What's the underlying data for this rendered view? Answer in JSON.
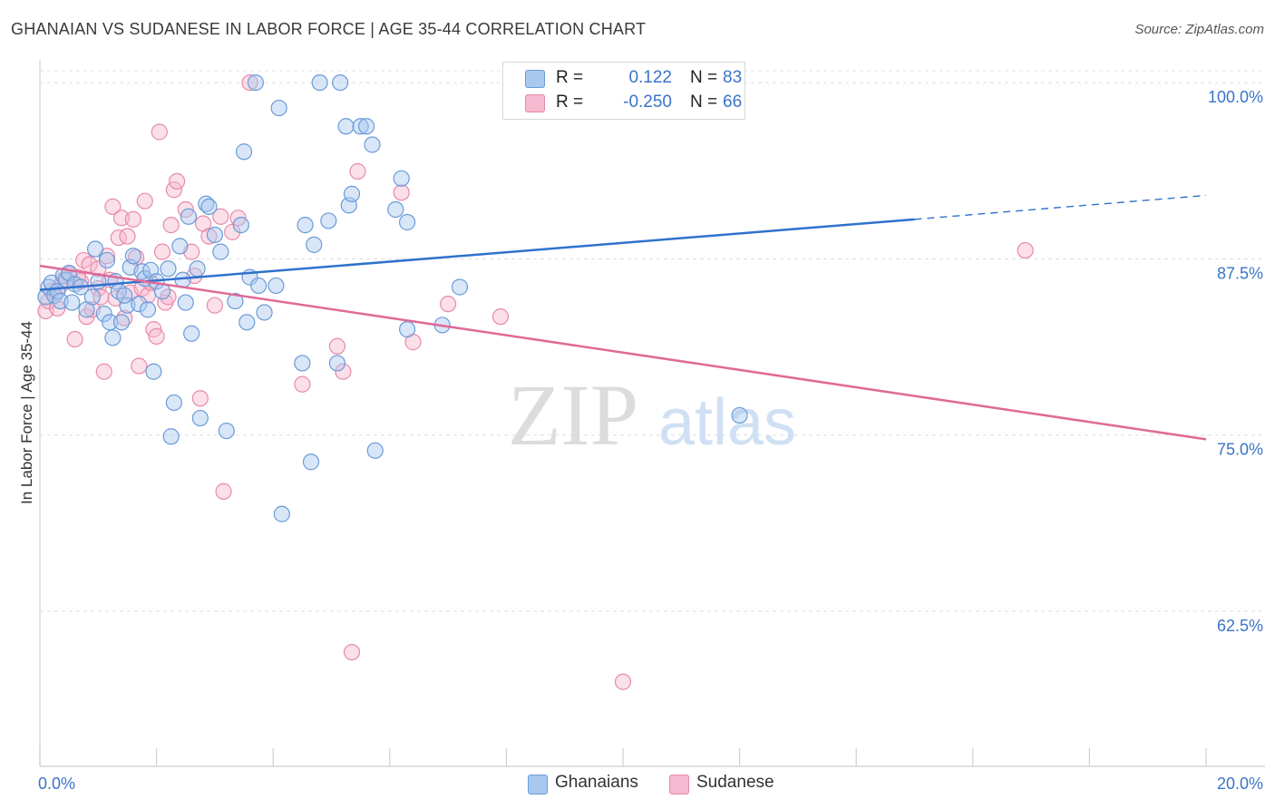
{
  "chart_data": {
    "type": "scatter",
    "title": "GHANAIAN VS SUDANESE IN LABOR FORCE | AGE 35-44 CORRELATION CHART",
    "source": "Source: ZipAtlas.com",
    "xlabel": "",
    "ylabel": "In Labor Force | Age 35-44",
    "xlim": [
      0,
      20
    ],
    "ylim": [
      51.5,
      102
    ],
    "x_tick_labels": {
      "left": "0.0%",
      "right": "20.0%"
    },
    "y_ticks": [
      {
        "value": 100,
        "label": "100.0%"
      },
      {
        "value": 87.5,
        "label": "87.5%"
      },
      {
        "value": 75,
        "label": "75.0%"
      },
      {
        "value": 62.5,
        "label": "62.5%"
      }
    ],
    "watermark": {
      "zip": "ZIP",
      "atlas": "atlas"
    },
    "legend": {
      "r_label": "R =",
      "n_label": "N =",
      "entries": [
        {
          "name": "Ghanaians",
          "r": "0.122",
          "n": "83"
        },
        {
          "name": "Sudanese",
          "r": "-0.250",
          "n": "66"
        }
      ]
    },
    "colors": {
      "ghanaian_fill": "#a9c8f0",
      "ghanaian_stroke": "#6a9bd8",
      "ghanaian_line": "#2f72cc",
      "sudanese_fill": "#f6b9cf",
      "sudanese_stroke": "#e88aaa",
      "sudanese_line": "#e06a95",
      "tick_label": "#3a74c8"
    },
    "series": [
      {
        "name": "Ghanaians",
        "trend": {
          "x0": 0,
          "y0": 85.3,
          "x1": 15,
          "y1": 90.3,
          "x_dash_end": 20,
          "y_dash_end": 92.0
        },
        "points": [
          [
            0.1,
            84.8
          ],
          [
            0.15,
            85.5
          ],
          [
            0.2,
            85.8
          ],
          [
            0.25,
            84.9
          ],
          [
            0.3,
            85.2
          ],
          [
            0.35,
            84.5
          ],
          [
            0.4,
            86.3
          ],
          [
            0.45,
            86.0
          ],
          [
            0.5,
            86.5
          ],
          [
            0.6,
            85.7
          ],
          [
            0.7,
            85.5
          ],
          [
            0.8,
            83.9
          ],
          [
            0.9,
            84.8
          ],
          [
            0.95,
            88.2
          ],
          [
            1.0,
            85.9
          ],
          [
            1.1,
            83.6
          ],
          [
            1.15,
            87.4
          ],
          [
            1.2,
            83.0
          ],
          [
            1.25,
            81.9
          ],
          [
            1.3,
            85.9
          ],
          [
            1.35,
            85.2
          ],
          [
            1.4,
            83.0
          ],
          [
            1.5,
            84.2
          ],
          [
            1.55,
            86.9
          ],
          [
            1.6,
            87.7
          ],
          [
            1.7,
            84.3
          ],
          [
            1.75,
            86.6
          ],
          [
            1.8,
            86.1
          ],
          [
            1.85,
            83.9
          ],
          [
            1.9,
            86.7
          ],
          [
            1.95,
            79.5
          ],
          [
            2.0,
            85.9
          ],
          [
            2.1,
            85.2
          ],
          [
            2.2,
            86.8
          ],
          [
            2.25,
            74.9
          ],
          [
            2.3,
            77.3
          ],
          [
            2.4,
            88.4
          ],
          [
            2.5,
            84.4
          ],
          [
            2.55,
            90.5
          ],
          [
            2.6,
            82.2
          ],
          [
            2.7,
            86.8
          ],
          [
            2.75,
            76.2
          ],
          [
            2.85,
            91.4
          ],
          [
            2.9,
            91.2
          ],
          [
            3.0,
            89.2
          ],
          [
            3.1,
            88.0
          ],
          [
            3.2,
            75.3
          ],
          [
            3.35,
            84.5
          ],
          [
            3.45,
            89.9
          ],
          [
            3.5,
            95.1
          ],
          [
            3.55,
            83.0
          ],
          [
            3.6,
            86.2
          ],
          [
            3.7,
            100.0
          ],
          [
            3.75,
            85.6
          ],
          [
            3.85,
            83.7
          ],
          [
            4.1,
            98.2
          ],
          [
            4.15,
            69.4
          ],
          [
            4.05,
            85.6
          ],
          [
            4.5,
            80.1
          ],
          [
            4.55,
            89.9
          ],
          [
            4.65,
            73.1
          ],
          [
            4.7,
            88.5
          ],
          [
            4.8,
            100.0
          ],
          [
            4.95,
            90.2
          ],
          [
            5.1,
            80.1
          ],
          [
            5.15,
            100.0
          ],
          [
            5.25,
            96.9
          ],
          [
            5.3,
            91.3
          ],
          [
            5.35,
            92.1
          ],
          [
            5.5,
            96.9
          ],
          [
            5.6,
            96.9
          ],
          [
            5.7,
            95.6
          ],
          [
            5.75,
            73.9
          ],
          [
            6.1,
            91.0
          ],
          [
            6.2,
            93.2
          ],
          [
            6.3,
            90.1
          ],
          [
            6.3,
            82.5
          ],
          [
            6.9,
            82.8
          ],
          [
            7.2,
            85.5
          ],
          [
            12.0,
            76.4
          ],
          [
            0.55,
            84.4
          ],
          [
            1.45,
            84.9
          ],
          [
            2.45,
            86.0
          ]
        ]
      },
      {
        "name": "Sudanese",
        "trend": {
          "x0": 0,
          "y0": 87.0,
          "x1": 20,
          "y1": 74.7
        },
        "points": [
          [
            0.1,
            83.8
          ],
          [
            0.15,
            84.5
          ],
          [
            0.2,
            85.2
          ],
          [
            0.3,
            84.0
          ],
          [
            0.4,
            86.0
          ],
          [
            0.5,
            86.4
          ],
          [
            0.6,
            81.8
          ],
          [
            0.7,
            85.9
          ],
          [
            0.75,
            87.4
          ],
          [
            0.8,
            83.4
          ],
          [
            0.85,
            87.1
          ],
          [
            0.9,
            83.9
          ],
          [
            1.0,
            85.4
          ],
          [
            1.05,
            84.8
          ],
          [
            1.1,
            79.5
          ],
          [
            1.15,
            87.7
          ],
          [
            1.2,
            86.0
          ],
          [
            1.25,
            91.2
          ],
          [
            1.3,
            84.7
          ],
          [
            1.35,
            89.0
          ],
          [
            1.4,
            90.4
          ],
          [
            1.45,
            83.3
          ],
          [
            1.5,
            89.1
          ],
          [
            1.55,
            85.1
          ],
          [
            1.6,
            90.3
          ],
          [
            1.65,
            87.6
          ],
          [
            1.7,
            79.9
          ],
          [
            1.75,
            85.4
          ],
          [
            1.8,
            91.6
          ],
          [
            1.85,
            84.9
          ],
          [
            1.9,
            85.8
          ],
          [
            1.95,
            82.5
          ],
          [
            2.0,
            82.0
          ],
          [
            2.05,
            96.5
          ],
          [
            2.1,
            88.0
          ],
          [
            2.15,
            84.4
          ],
          [
            2.2,
            84.8
          ],
          [
            2.25,
            89.9
          ],
          [
            2.3,
            92.4
          ],
          [
            2.35,
            93.0
          ],
          [
            2.5,
            91.0
          ],
          [
            2.6,
            88.0
          ],
          [
            2.65,
            86.3
          ],
          [
            2.75,
            77.6
          ],
          [
            2.8,
            90.0
          ],
          [
            2.9,
            89.1
          ],
          [
            3.0,
            84.2
          ],
          [
            3.1,
            90.5
          ],
          [
            3.15,
            71.0
          ],
          [
            3.3,
            89.4
          ],
          [
            3.4,
            90.4
          ],
          [
            3.6,
            100.0
          ],
          [
            4.5,
            78.6
          ],
          [
            5.1,
            81.3
          ],
          [
            5.2,
            79.5
          ],
          [
            5.35,
            59.6
          ],
          [
            5.45,
            93.7
          ],
          [
            6.2,
            92.2
          ],
          [
            6.4,
            81.6
          ],
          [
            7.0,
            84.3
          ],
          [
            7.9,
            83.4
          ],
          [
            10.0,
            57.5
          ],
          [
            16.9,
            88.1
          ],
          [
            0.35,
            85.6
          ],
          [
            0.65,
            86.2
          ],
          [
            1.0,
            86.8
          ]
        ]
      }
    ]
  }
}
